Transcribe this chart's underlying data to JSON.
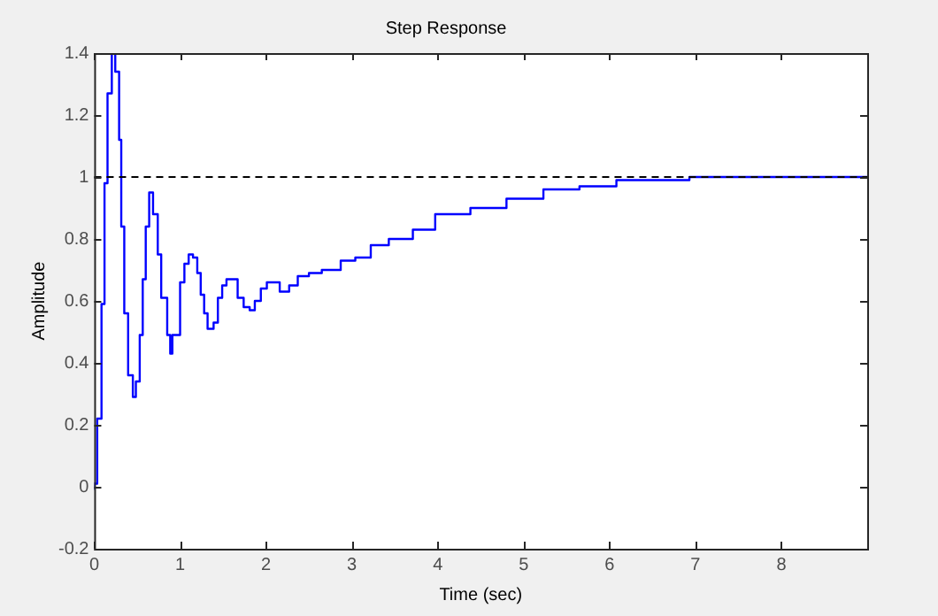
{
  "chart_data": {
    "type": "step",
    "title": "Step Response",
    "xlabel": "Time (sec)",
    "ylabel": "Amplitude",
    "x": [
      0,
      0.035,
      0.085,
      0.12,
      0.155,
      0.205,
      0.245,
      0.29,
      0.315,
      0.35,
      0.395,
      0.45,
      0.485,
      0.53,
      0.565,
      0.6,
      0.64,
      0.685,
      0.74,
      0.78,
      0.85,
      0.885,
      0.91,
      1.0,
      1.05,
      1.1,
      1.15,
      1.2,
      1.24,
      1.28,
      1.32,
      1.39,
      1.44,
      1.49,
      1.54,
      1.6,
      1.67,
      1.74,
      1.81,
      1.87,
      1.94,
      2.01,
      2.09,
      2.16,
      2.27,
      2.37,
      2.5,
      2.65,
      2.87,
      3.04,
      3.22,
      3.43,
      3.71,
      3.97,
      4.38,
      4.8,
      5.23,
      5.65,
      6.08,
      6.5,
      6.93,
      7.57,
      9
    ],
    "series": [
      {
        "color": "#0000ff",
        "values": [
          -0.01,
          0.01,
          0.22,
          0.59,
          0.98,
          1.27,
          1.4,
          1.34,
          1.12,
          0.84,
          0.56,
          0.36,
          0.29,
          0.34,
          0.49,
          0.67,
          0.84,
          0.95,
          0.88,
          0.75,
          0.61,
          0.49,
          0.43,
          0.49,
          0.66,
          0.72,
          0.75,
          0.74,
          0.69,
          0.62,
          0.56,
          0.51,
          0.53,
          0.61,
          0.65,
          0.67,
          0.67,
          0.61,
          0.58,
          0.57,
          0.6,
          0.64,
          0.66,
          0.66,
          0.63,
          0.65,
          0.68,
          0.69,
          0.7,
          0.73,
          0.74,
          0.78,
          0.8,
          0.83,
          0.88,
          0.9,
          0.93,
          0.96,
          0.97,
          0.99,
          0.99,
          1,
          1
        ]
      }
    ],
    "xlim": [
      0,
      9
    ],
    "xticks": [
      0,
      1,
      2,
      3,
      4,
      5,
      6,
      7,
      8
    ],
    "ylim": [
      -0.2,
      1.4
    ],
    "yticks": [
      -0.2,
      0,
      0.2,
      0.4,
      0.6,
      0.8,
      1,
      1.2,
      1.4
    ],
    "ref_lines": [
      {
        "axis": "y",
        "value": 1,
        "color": "#000000",
        "line_style": "dashed"
      }
    ],
    "grid": false,
    "legend": false,
    "line_style": "solid",
    "marker": "none"
  }
}
